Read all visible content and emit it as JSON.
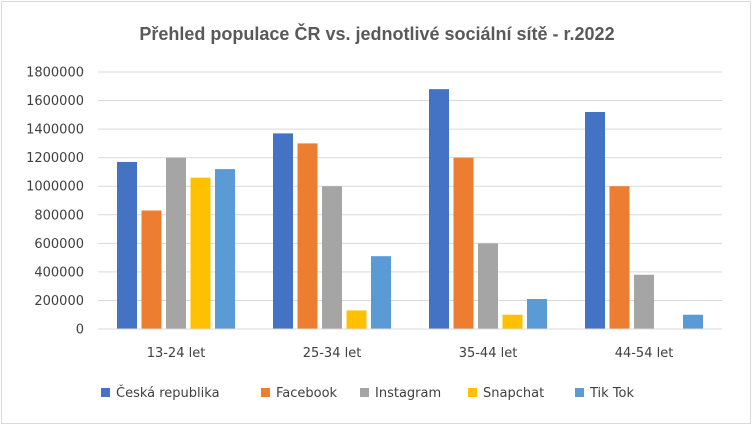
{
  "chart_data": {
    "type": "bar",
    "title": "Přehled populace ČR vs. jednotlivé sociální sítě - r.2022",
    "xlabel": "",
    "ylabel": "",
    "categories": [
      "13-24 let",
      "25-34 let",
      "35-44 let",
      "44-54 let"
    ],
    "ylim": [
      0,
      1800000
    ],
    "yticks": [
      0,
      200000,
      400000,
      600000,
      800000,
      1000000,
      1200000,
      1400000,
      1600000,
      1800000
    ],
    "grid": true,
    "legend_position": "bottom",
    "series": [
      {
        "name": "Česká republika",
        "color": "#4472c4",
        "values": [
          1170000,
          1370000,
          1680000,
          1520000
        ]
      },
      {
        "name": "Facebook",
        "color": "#ed7d31",
        "values": [
          830000,
          1300000,
          1200000,
          1000000
        ]
      },
      {
        "name": "Instagram",
        "color": "#a5a5a5",
        "values": [
          1200000,
          1000000,
          600000,
          380000
        ]
      },
      {
        "name": "Snapchat",
        "color": "#ffc000",
        "values": [
          1060000,
          130000,
          100000,
          0
        ]
      },
      {
        "name": "Tik Tok",
        "color": "#5b9bd5",
        "values": [
          1120000,
          510000,
          210000,
          100000
        ]
      }
    ]
  }
}
